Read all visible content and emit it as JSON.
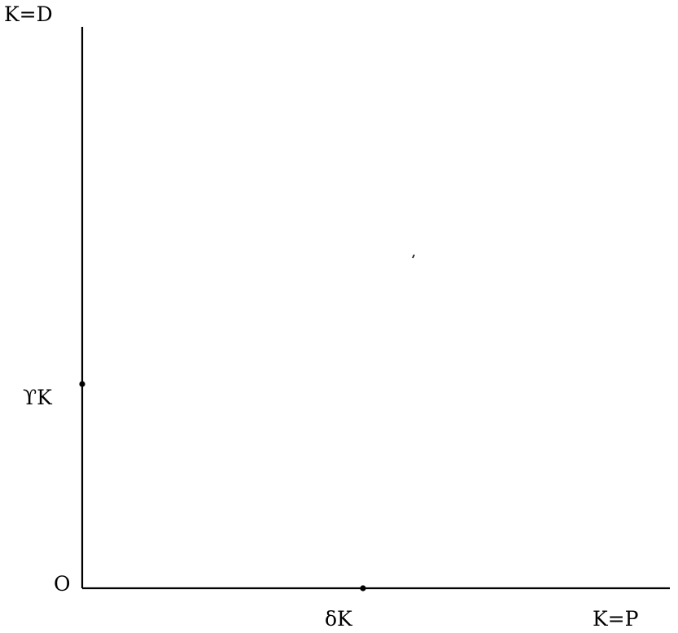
{
  "axes": {
    "y_top_label": "K=D",
    "x_right_label": "K=P",
    "origin_label": "O"
  },
  "points": {
    "y_axis_point": "ϒK",
    "x_axis_point": "δK"
  },
  "colors": {
    "ink": "#000000",
    "background": "#ffffff"
  }
}
